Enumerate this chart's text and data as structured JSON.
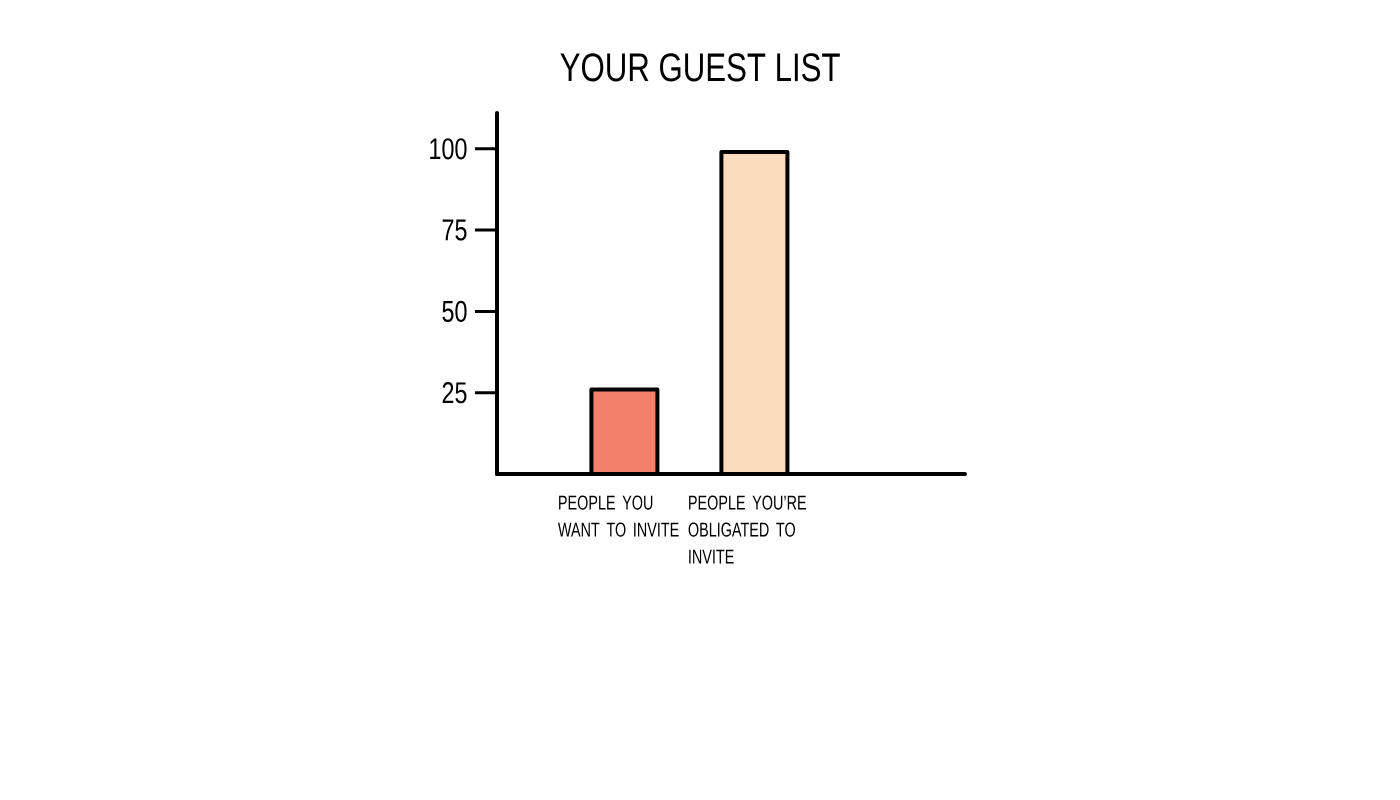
{
  "chart_data": {
    "type": "bar",
    "title": "YOUR GUEST LIST",
    "categories": [
      "PEOPLE YOU WANT TO INVITE",
      "PEOPLE YOU’RE OBLIGATED TO INVITE"
    ],
    "values": [
      26,
      99
    ],
    "colors": [
      "#f2806a",
      "#fbdcbc"
    ],
    "ylim": [
      0,
      111
    ],
    "yticks": [
      25,
      50,
      75,
      100
    ]
  }
}
